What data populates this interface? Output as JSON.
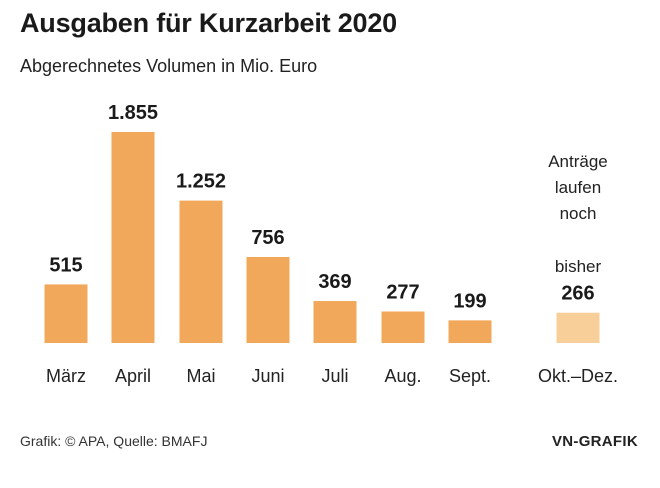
{
  "title": "Ausgaben für Kurzarbeit 2020",
  "subtitle": "Abgerechnetes Volumen in Mio. Euro",
  "footer": {
    "source": "Grafik: © APA, Quelle: BMAFJ",
    "brand": "VN-GRAFIK"
  },
  "note": {
    "line1": "Anträge",
    "line2": "laufen",
    "line3": "noch",
    "prefix": "bisher"
  },
  "colors": {
    "bar": "#f2a85a",
    "bar_partial": "#f9cf99"
  },
  "chart_data": {
    "type": "bar",
    "title": "Ausgaben für Kurzarbeit 2020",
    "subtitle": "Abgerechnetes Volumen in Mio. Euro",
    "categories": [
      "März",
      "April",
      "Mai",
      "Juni",
      "Juli",
      "Aug.",
      "Sept.",
      "Okt.–Dez."
    ],
    "values": [
      515,
      1855,
      1252,
      756,
      369,
      277,
      199,
      266
    ],
    "value_labels": [
      "515",
      "1.855",
      "1.252",
      "756",
      "369",
      "277",
      "199",
      "266"
    ],
    "partial": [
      false,
      false,
      false,
      false,
      false,
      false,
      false,
      true
    ],
    "ylim": [
      0,
      1855
    ],
    "grid": false,
    "legend": "none"
  }
}
